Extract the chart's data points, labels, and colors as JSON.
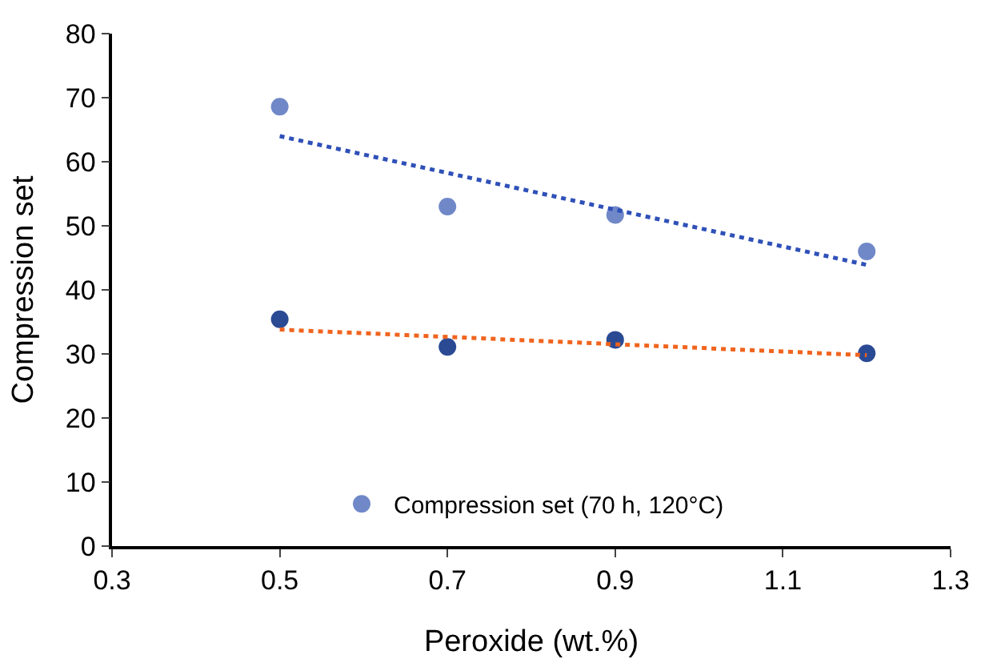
{
  "chart_data": {
    "type": "scatter",
    "xlabel": "Peroxide (wt.%)",
    "ylabel": "Compression set",
    "xlim": [
      0.3,
      1.3
    ],
    "xticks": [
      0.3,
      0.5,
      0.7,
      0.9,
      1.1,
      1.3
    ],
    "ylim": [
      0,
      80
    ],
    "yticks": [
      0,
      10,
      20,
      30,
      40,
      50,
      60,
      70,
      80
    ],
    "legend": "bottom",
    "series": [
      {
        "name": "Compression set (70 h, 120°C)",
        "color": "#7088c8",
        "marker": "circle",
        "x": [
          0.5,
          0.7,
          0.9,
          1.2
        ],
        "values": [
          68.6,
          53.0,
          51.7,
          46.0
        ]
      },
      {
        "color": "#2b4a94",
        "marker": "circle",
        "x": [
          0.5,
          0.7,
          0.9,
          1.2
        ],
        "values": [
          35.4,
          31.1,
          32.2,
          30.1
        ]
      },
      {
        "type": "line",
        "line_style": "dotted",
        "color": "#2f50b8",
        "x": [
          0.5,
          1.2
        ],
        "values": [
          64.0,
          43.9
        ]
      },
      {
        "type": "line",
        "line_style": "dotted",
        "color": "#f0641e",
        "x": [
          0.5,
          1.2
        ],
        "values": [
          33.8,
          29.8
        ]
      }
    ]
  }
}
